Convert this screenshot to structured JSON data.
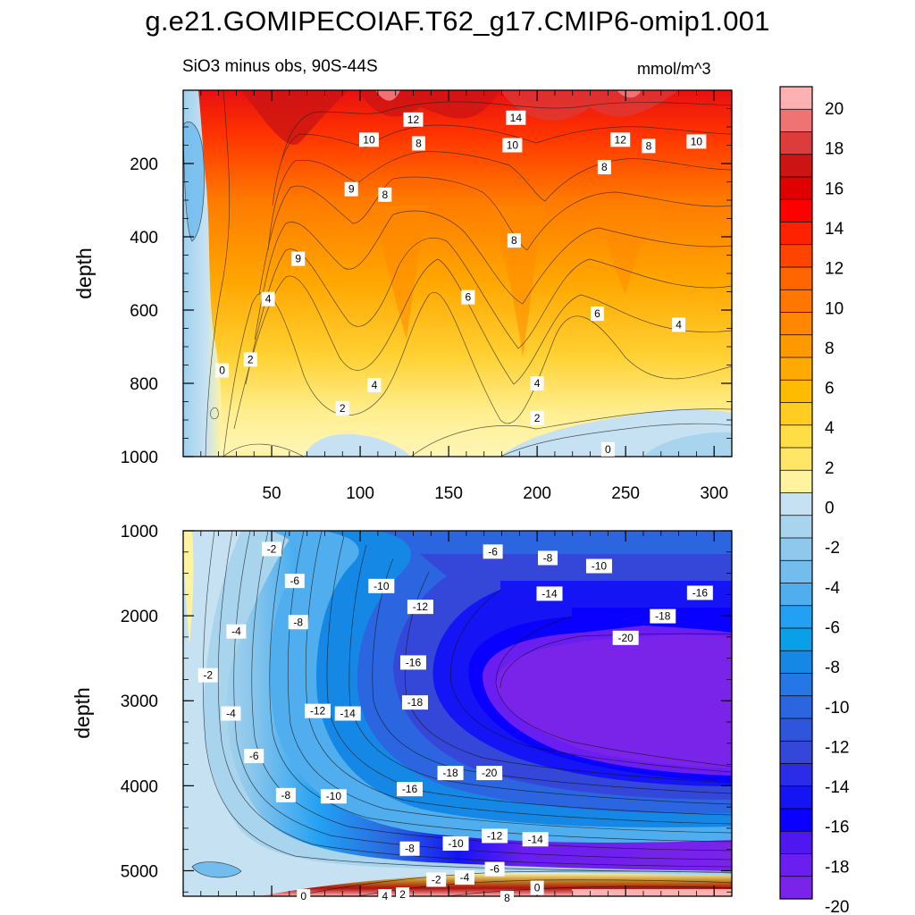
{
  "chart_data": {
    "type": "contour",
    "title": "g.e21.GOMIPECOIAF.T62_g17.CMIP6-omip1.001",
    "subtitle": "SiO3 minus obs, 90S-44S",
    "units": "mmol/m^3",
    "ylabel": "depth",
    "grid": false,
    "x_range": [
      0,
      310
    ],
    "x_ticks": [
      "50",
      "100",
      "150",
      "200",
      "250",
      "300"
    ],
    "panels": [
      {
        "name": "upper",
        "ylim": [
          1000,
          0
        ],
        "y_ticks": [
          "200",
          "400",
          "600",
          "800",
          "1000"
        ],
        "contour_labels": [
          {
            "text": "12",
            "x": 130,
            "y": 80
          },
          {
            "text": "14",
            "x": 188,
            "y": 75
          },
          {
            "text": "10",
            "x": 105,
            "y": 135
          },
          {
            "text": "8",
            "x": 133,
            "y": 145
          },
          {
            "text": "10",
            "x": 186,
            "y": 150
          },
          {
            "text": "12",
            "x": 247,
            "y": 135
          },
          {
            "text": "8",
            "x": 263,
            "y": 152
          },
          {
            "text": "10",
            "x": 290,
            "y": 140
          },
          {
            "text": "8",
            "x": 238,
            "y": 210
          },
          {
            "text": "9",
            "x": 95,
            "y": 270
          },
          {
            "text": "8",
            "x": 114,
            "y": 285
          },
          {
            "text": "8",
            "x": 187,
            "y": 410
          },
          {
            "text": "9",
            "x": 65,
            "y": 460
          },
          {
            "text": "4",
            "x": 48,
            "y": 570
          },
          {
            "text": "6",
            "x": 161,
            "y": 565
          },
          {
            "text": "6",
            "x": 234,
            "y": 610
          },
          {
            "text": "4",
            "x": 280,
            "y": 640
          },
          {
            "text": "2",
            "x": 38,
            "y": 735
          },
          {
            "text": "0",
            "x": 22,
            "y": 765
          },
          {
            "text": "4",
            "x": 108,
            "y": 805
          },
          {
            "text": "4",
            "x": 200,
            "y": 800
          },
          {
            "text": "2",
            "x": 90,
            "y": 868
          },
          {
            "text": "2",
            "x": 200,
            "y": 895
          },
          {
            "text": "0",
            "x": 240,
            "y": 980
          }
        ]
      },
      {
        "name": "lower",
        "ylim": [
          5300,
          1000
        ],
        "y_ticks": [
          "1000",
          "2000",
          "3000",
          "4000",
          "5000"
        ],
        "contour_labels": [
          {
            "text": "-2",
            "x": 50,
            "y": 1215
          },
          {
            "text": "-6",
            "x": 175,
            "y": 1245
          },
          {
            "text": "-8",
            "x": 206,
            "y": 1320
          },
          {
            "text": "-10",
            "x": 235,
            "y": 1415
          },
          {
            "text": "-6",
            "x": 63,
            "y": 1590
          },
          {
            "text": "-10",
            "x": 112,
            "y": 1650
          },
          {
            "text": "-14",
            "x": 207,
            "y": 1740
          },
          {
            "text": "-16",
            "x": 292,
            "y": 1730
          },
          {
            "text": "-12",
            "x": 134,
            "y": 1895
          },
          {
            "text": "-8",
            "x": 65,
            "y": 2075
          },
          {
            "text": "-18",
            "x": 271,
            "y": 2005
          },
          {
            "text": "-4",
            "x": 30,
            "y": 2185
          },
          {
            "text": "-20",
            "x": 250,
            "y": 2260
          },
          {
            "text": "-16",
            "x": 130,
            "y": 2550
          },
          {
            "text": "-2",
            "x": 14,
            "y": 2700
          },
          {
            "text": "-18",
            "x": 131,
            "y": 3020
          },
          {
            "text": "-12",
            "x": 76,
            "y": 3120
          },
          {
            "text": "-14",
            "x": 93,
            "y": 3150
          },
          {
            "text": "-4",
            "x": 27,
            "y": 3150
          },
          {
            "text": "-6",
            "x": 40,
            "y": 3650
          },
          {
            "text": "-18",
            "x": 151,
            "y": 3850
          },
          {
            "text": "-20",
            "x": 173,
            "y": 3850
          },
          {
            "text": "-16",
            "x": 128,
            "y": 4040
          },
          {
            "text": "-8",
            "x": 58,
            "y": 4110
          },
          {
            "text": "-10",
            "x": 85,
            "y": 4125
          },
          {
            "text": "-12",
            "x": 176,
            "y": 4590
          },
          {
            "text": "-14",
            "x": 199,
            "y": 4630
          },
          {
            "text": "-10",
            "x": 154,
            "y": 4680
          },
          {
            "text": "-8",
            "x": 128,
            "y": 4740
          },
          {
            "text": "-6",
            "x": 176,
            "y": 4980
          },
          {
            "text": "-4",
            "x": 159,
            "y": 5080
          },
          {
            "text": "-2",
            "x": 143,
            "y": 5105
          },
          {
            "text": "0",
            "x": 200,
            "y": 5200
          },
          {
            "text": "0",
            "x": 68,
            "y": 5300
          },
          {
            "text": "4",
            "x": 114,
            "y": 5300
          },
          {
            "text": "2",
            "x": 124,
            "y": 5280
          },
          {
            "text": "8",
            "x": 183,
            "y": 5320
          }
        ]
      }
    ],
    "colorbar": {
      "labels": [
        "20",
        "18",
        "16",
        "14",
        "12",
        "10",
        "8",
        "6",
        "4",
        "2",
        "0",
        "-2",
        "-4",
        "-6",
        "-8",
        "-10",
        "-12",
        "-14",
        "-16",
        "-18",
        "-20"
      ],
      "colors": [
        "#fdb1b1",
        "#f07373",
        "#dc3c3c",
        "#cc1414",
        "#e00000",
        "#ff0000",
        "#ff2200",
        "#ff4400",
        "#ff6600",
        "#ff7700",
        "#ff8800",
        "#ff9900",
        "#ffaa00",
        "#ffbb00",
        "#ffcc22",
        "#ffdd44",
        "#ffe666",
        "#fff3a0",
        "#c6e2f2",
        "#a8d4ee",
        "#8ec8ec",
        "#72bcee",
        "#50aeee",
        "#22a0f2",
        "#0aa0e8",
        "#1588e6",
        "#2577e6",
        "#2b66e0",
        "#2f55dc",
        "#3447d8",
        "#2a2ce8",
        "#1414f4",
        "#0a00ff",
        "#5018f0",
        "#6a1ef0",
        "#7a24ea"
      ]
    }
  }
}
